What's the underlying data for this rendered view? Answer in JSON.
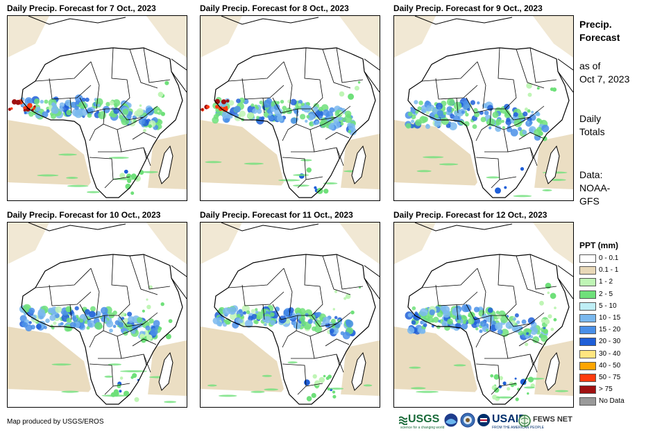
{
  "panels": [
    {
      "title": "Daily Precip. Forecast for 7 Oct., 2023"
    },
    {
      "title": "Daily Precip. Forecast for 8 Oct., 2023"
    },
    {
      "title": "Daily Precip. Forecast for 9 Oct., 2023"
    },
    {
      "title": "Daily Precip. Forecast for 10 Oct., 2023"
    },
    {
      "title": "Daily Precip. Forecast for 11 Oct., 2023"
    },
    {
      "title": "Daily Precip. Forecast for 12 Oct., 2023"
    }
  ],
  "sidebar": {
    "title_line1": "Precip.",
    "title_line2": "Forecast",
    "asof_line1": "as of",
    "asof_line2": "Oct 7, 2023",
    "totals_line1": "Daily",
    "totals_line2": "Totals",
    "data_line1": "Data:",
    "data_line2": "NOAA-",
    "data_line3": "GFS"
  },
  "legend": {
    "title": "PPT (mm)",
    "items": [
      {
        "label": "0 - 0.1",
        "color": "#ffffff"
      },
      {
        "label": "0.1 - 1",
        "color": "#e8d8b8"
      },
      {
        "label": "1 - 2",
        "color": "#bff5b5"
      },
      {
        "label": "2 - 5",
        "color": "#6fe07a"
      },
      {
        "label": "5 - 10",
        "color": "#bfeef5"
      },
      {
        "label": "10 - 15",
        "color": "#7ab8ee"
      },
      {
        "label": "15 - 20",
        "color": "#4a8fe8"
      },
      {
        "label": "20 - 30",
        "color": "#1f5fd8"
      },
      {
        "label": "30 - 40",
        "color": "#ffe680"
      },
      {
        "label": "40 - 50",
        "color": "#ffa500"
      },
      {
        "label": "50 - 75",
        "color": "#ff3b0f"
      },
      {
        "label": "> 75",
        "color": "#a01010"
      },
      {
        "label": "No Data",
        "color": "#999999"
      }
    ]
  },
  "footer": {
    "credit": "Map produced by USGS/EROS",
    "usgs": "USGS",
    "usgs_sub": "science for a changing world",
    "usaid": "USAID",
    "usaid_sub": "FROM THE AMERICAN PEOPLE",
    "fews": "FEWS NET"
  }
}
